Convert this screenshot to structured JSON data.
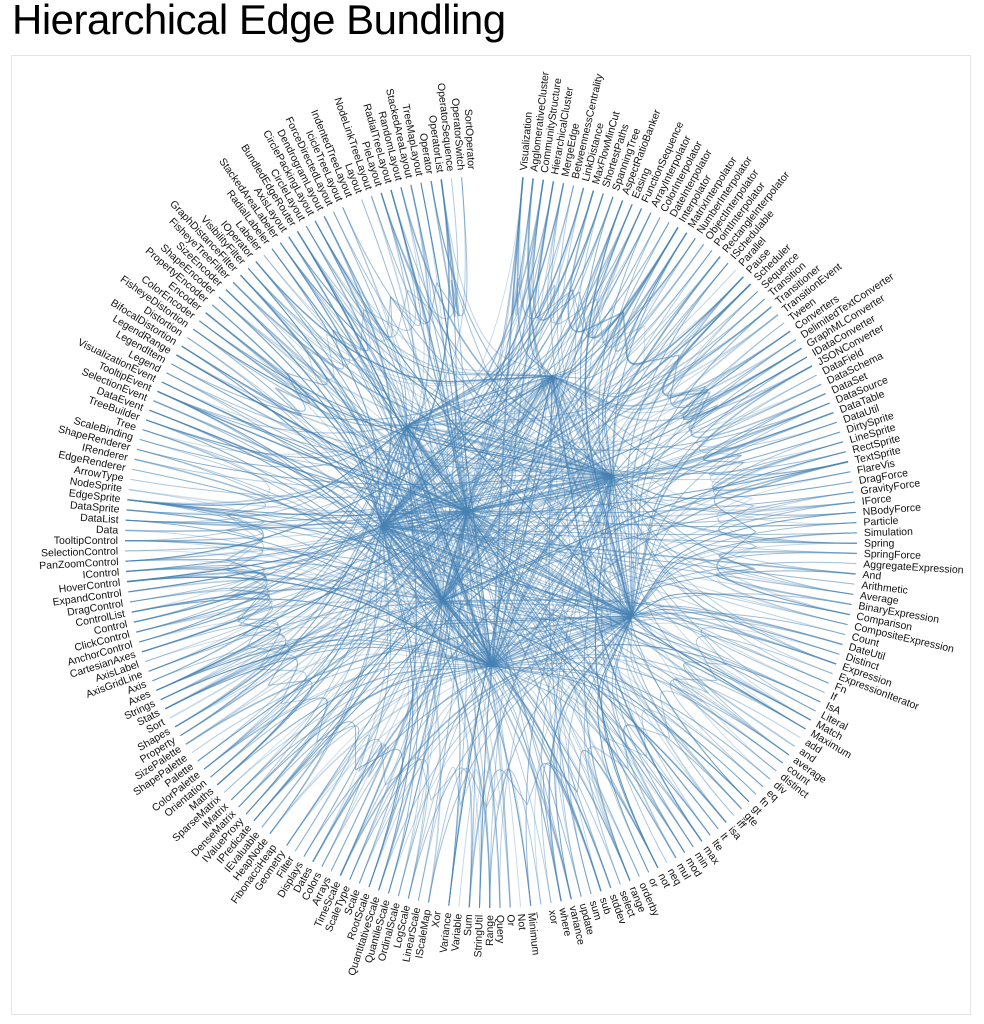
{
  "page": {
    "title": "Hierarchical Edge Bundling"
  },
  "diagram": {
    "type": "hierarchical-edge-bundling",
    "link_color": "#4682b4",
    "label_color": "#111111",
    "nodes": [
      "Visualization",
      "AgglomerativeCluster",
      "CommunityStructure",
      "HierarchicalCluster",
      "MergeEdge",
      "BetweennessCentrality",
      "LinkDistance",
      "MaxFlowMinCut",
      "ShortestPaths",
      "SpanningTree",
      "AspectRatioBanker",
      "Easing",
      "FunctionSequence",
      "ArrayInterpolator",
      "ColorInterpolator",
      "DateInterpolator",
      "Interpolator",
      "MatrixInterpolator",
      "NumberInterpolator",
      "ObjectInterpolator",
      "PointInterpolator",
      "RectangleInterpolator",
      "ISchedulable",
      "Parallel",
      "Pause",
      "Scheduler",
      "Sequence",
      "Transition",
      "Transitioner",
      "TransitionEvent",
      "Tween",
      "Converters",
      "DelimitedTextConverter",
      "GraphMLConverter",
      "IDataConverter",
      "JSONConverter",
      "DataField",
      "DataSchema",
      "DataSet",
      "DataSource",
      "DataTable",
      "DataUtil",
      "DirtySprite",
      "LineSprite",
      "RectSprite",
      "TextSprite",
      "FlareVis",
      "DragForce",
      "GravityForce",
      "IForce",
      "NBodyForce",
      "Particle",
      "Simulation",
      "Spring",
      "SpringForce",
      "AggregateExpression",
      "And",
      "Arithmetic",
      "Average",
      "BinaryExpression",
      "Comparison",
      "CompositeExpression",
      "Count",
      "DateUtil",
      "Distinct",
      "Expression",
      "ExpressionIterator",
      "Fn",
      "If",
      "IsA",
      "Literal",
      "Match",
      "Maximum",
      "add",
      "and",
      "average",
      "count",
      "distinct",
      "div",
      "eq",
      "fn",
      "gt",
      "gte",
      "iff",
      "isa",
      "lt",
      "lte",
      "max",
      "min",
      "mod",
      "mul",
      "neq",
      "not",
      "or",
      "orderby",
      "range",
      "select",
      "stddev",
      "sub",
      "sum",
      "update",
      "variance",
      "where",
      "xor",
      "_",
      "Minimum",
      "Not",
      "Or",
      "Query",
      "Range",
      "StringUtil",
      "Sum",
      "Variable",
      "Variance",
      "Xor",
      "IScaleMap",
      "LinearScale",
      "LogScale",
      "OrdinalScale",
      "QuantileScale",
      "QuantitativeScale",
      "RootScale",
      "Scale",
      "ScaleType",
      "TimeScale",
      "Arrays",
      "Colors",
      "Dates",
      "Displays",
      "Filter",
      "Geometry",
      "FibonacciHeap",
      "HeapNode",
      "IEvaluable",
      "IPredicate",
      "IValueProxy",
      "DenseMatrix",
      "IMatrix",
      "SparseMatrix",
      "Maths",
      "Orientation",
      "ColorPalette",
      "Palette",
      "ShapePalette",
      "SizePalette",
      "Property",
      "Shapes",
      "Sort",
      "Stats",
      "Strings",
      "Axes",
      "Axis",
      "AxisGridLine",
      "AxisLabel",
      "CartesianAxes",
      "AnchorControl",
      "ClickControl",
      "Control",
      "ControlList",
      "DragControl",
      "ExpandControl",
      "HoverControl",
      "IControl",
      "PanZoomControl",
      "SelectionControl",
      "TooltipControl",
      "Data",
      "DataList",
      "DataSprite",
      "EdgeSprite",
      "NodeSprite",
      "ArrowType",
      "EdgeRenderer",
      "IRenderer",
      "ShapeRenderer",
      "ScaleBinding",
      "Tree",
      "TreeBuilder",
      "DataEvent",
      "SelectionEvent",
      "TooltipEvent",
      "VisualizationEvent",
      "Legend",
      "LegendItem",
      "LegendRange",
      "BifocalDistortion",
      "Distortion",
      "FisheyeDistortion",
      "ColorEncoder",
      "Encoder",
      "PropertyEncoder",
      "ShapeEncoder",
      "SizeEncoder",
      "FisheyeTreeFilter",
      "GraphDistanceFilter",
      "VisibilityFilter",
      "IOperator",
      "Labeler",
      "RadialLabeler",
      "StackedAreaLabeler",
      "AxisLayout",
      "BundledEdgeRouter",
      "CircleLayout",
      "CirclePackingLayout",
      "DendrogramLayout",
      "ForceDirectedLayout",
      "IcicleTreeLayout",
      "IndentedTreeLayout",
      "Layout",
      "NodeLinkTreeLayout",
      "PieLayout",
      "RadialTreeLayout",
      "RandomLayout",
      "StackedAreaLayout",
      "TreeMapLayout",
      "Operator",
      "OperatorList",
      "OperatorSequence",
      "OperatorSwitch",
      "SortOperator"
    ]
  }
}
